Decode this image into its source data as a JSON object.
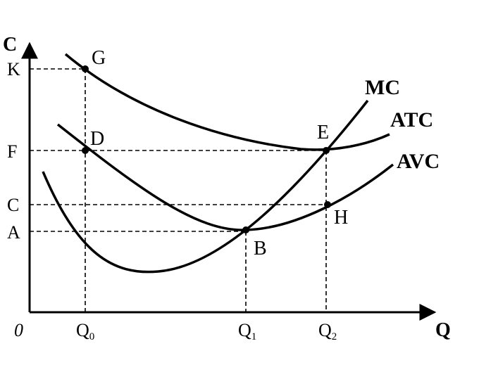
{
  "axes": {
    "y_label": "C",
    "x_label": "Q",
    "origin_label": "0"
  },
  "y_ticks": [
    {
      "id": "k",
      "label": "K"
    },
    {
      "id": "f",
      "label": "F"
    },
    {
      "id": "c",
      "label": "C"
    },
    {
      "id": "a",
      "label": "A"
    }
  ],
  "x_ticks": [
    {
      "id": "q0",
      "label": "Q",
      "sub": "0"
    },
    {
      "id": "q1",
      "label": "Q",
      "sub": "1"
    },
    {
      "id": "q2",
      "label": "Q",
      "sub": "2"
    }
  ],
  "curves": [
    {
      "id": "mc",
      "label": "MC"
    },
    {
      "id": "atc",
      "label": "ATC"
    },
    {
      "id": "avc",
      "label": "AVC"
    }
  ],
  "points": [
    {
      "id": "g",
      "label": "G"
    },
    {
      "id": "d",
      "label": "D"
    },
    {
      "id": "e",
      "label": "E"
    },
    {
      "id": "b",
      "label": "B"
    },
    {
      "id": "h",
      "label": "H"
    }
  ]
}
